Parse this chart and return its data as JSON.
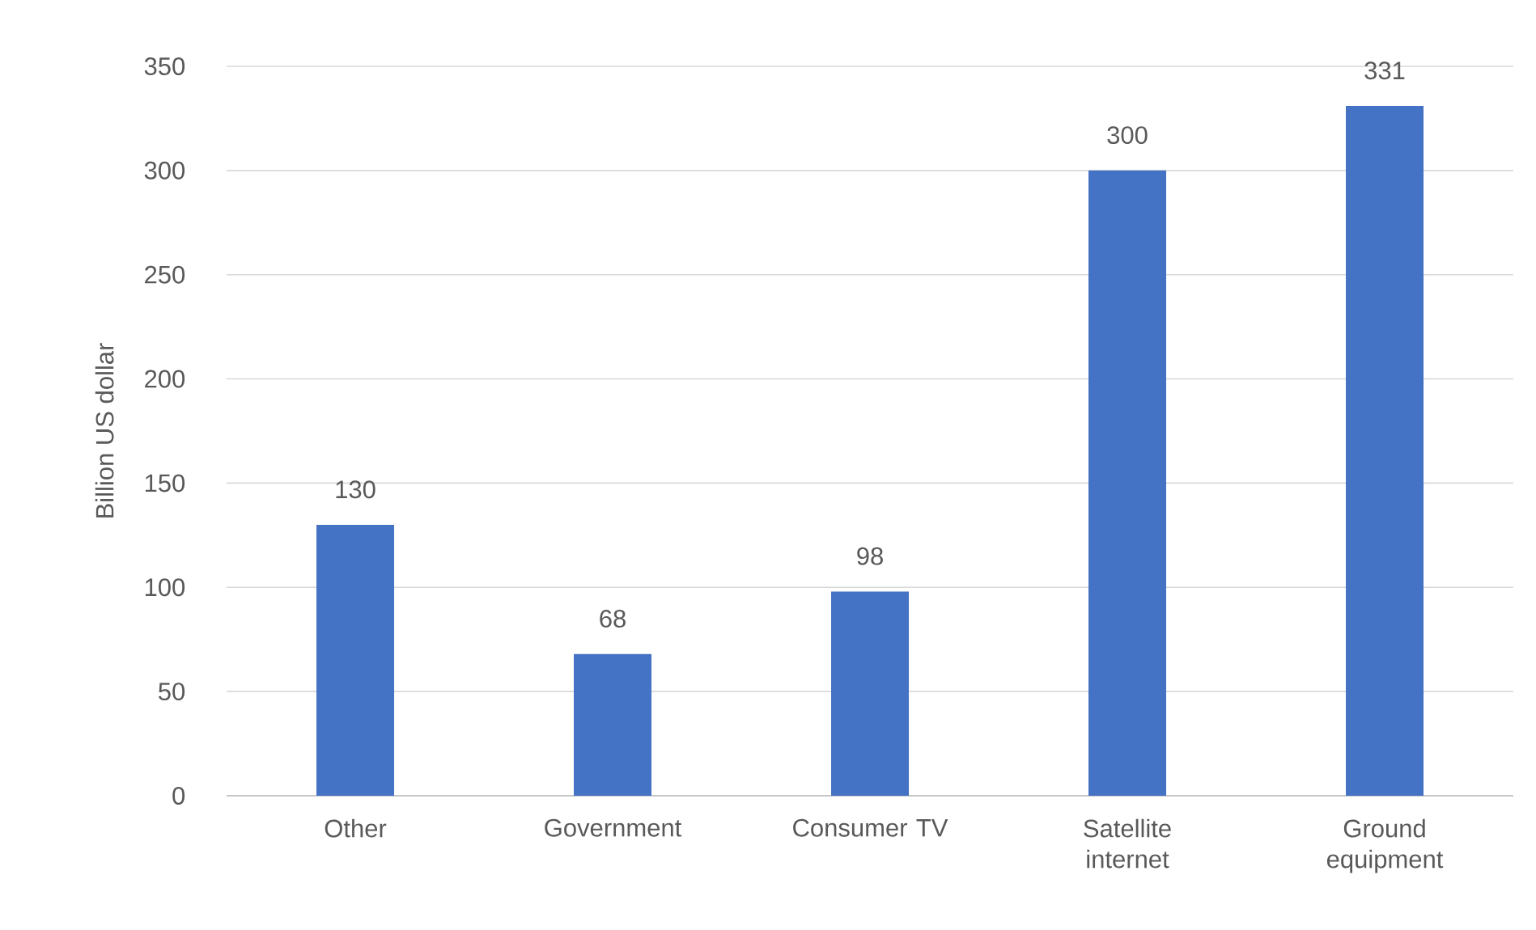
{
  "chart_data": {
    "type": "bar",
    "ylabel": "Billion US dollar",
    "categories": [
      "Other",
      "Government",
      "Consumer TV",
      "Satellite internet",
      "Ground equipment"
    ],
    "values": [
      130,
      68,
      98,
      300,
      331
    ],
    "color": "#4472c4",
    "data_labels": true,
    "ylim": [
      0,
      350
    ],
    "yticks": [
      0,
      50,
      100,
      150,
      200,
      250,
      300,
      350
    ],
    "grid": "y"
  }
}
